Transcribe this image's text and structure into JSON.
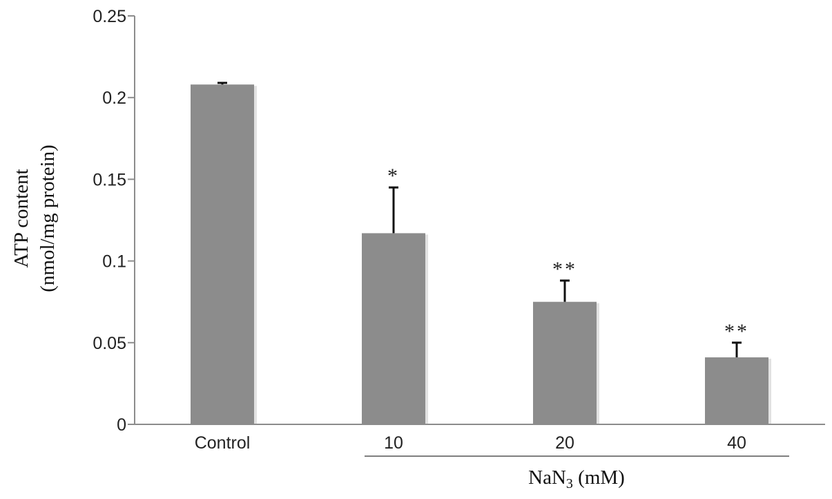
{
  "chart_data": {
    "type": "bar",
    "categories": [
      "Control",
      "10",
      "20",
      "40"
    ],
    "values": [
      0.208,
      0.117,
      0.075,
      0.041
    ],
    "errors": [
      0.001,
      0.028,
      0.013,
      0.009
    ],
    "significance": [
      "",
      "*",
      "**",
      "**"
    ],
    "ylabel_line1": "ATP content",
    "ylabel_line2": "(nmol/mg protein)",
    "xgroup_label": "NaN",
    "xgroup_subscript": "3",
    "xgroup_unit": " (mM)",
    "ylim": [
      0,
      0.25
    ],
    "yticks": [
      "0",
      "0.05",
      "0.1",
      "0.15",
      "0.2",
      "0.25"
    ],
    "ytick_values": [
      0,
      0.05,
      0.1,
      0.15,
      0.2,
      0.25
    ],
    "grid": false,
    "bar_color": "#8c8c8c",
    "axis_color": "#8c8c8c",
    "error_color": "#111111"
  }
}
